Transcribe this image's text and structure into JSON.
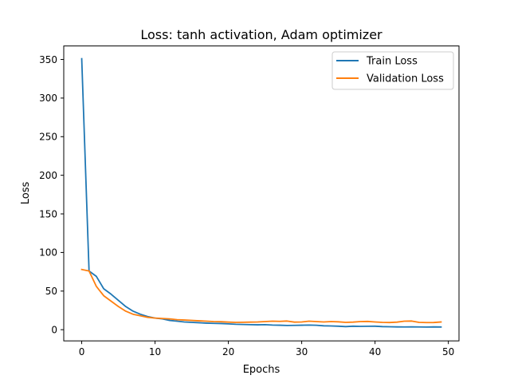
{
  "chart_data": {
    "type": "line",
    "title": "Loss: tanh activation, Adam optimizer",
    "xlabel": "Epochs",
    "ylabel": "Loss",
    "xlim": [
      -2.45,
      51.45
    ],
    "ylim": [
      -14.5,
      367.5
    ],
    "xticks": [
      0,
      10,
      20,
      30,
      40,
      50
    ],
    "yticks": [
      0,
      50,
      100,
      150,
      200,
      250,
      300,
      350
    ],
    "grid": false,
    "legend_position": "top-right",
    "x": [
      0,
      1,
      2,
      3,
      4,
      5,
      6,
      7,
      8,
      9,
      10,
      11,
      12,
      13,
      14,
      15,
      16,
      17,
      18,
      19,
      20,
      21,
      22,
      23,
      24,
      25,
      26,
      27,
      28,
      29,
      30,
      31,
      32,
      33,
      34,
      35,
      36,
      37,
      38,
      39,
      40,
      41,
      42,
      43,
      44,
      45,
      46,
      47,
      48,
      49
    ],
    "series": [
      {
        "name": "Train Loss",
        "color": "#1f77b4",
        "values": [
          351,
          76,
          69,
          53,
          46,
          38,
          30,
          24,
          20,
          17,
          15,
          14,
          12,
          11,
          10,
          9.5,
          9,
          8.5,
          8.2,
          8,
          7.5,
          7,
          6.8,
          6.5,
          6.3,
          6.5,
          6,
          5.8,
          5.5,
          5.6,
          5.8,
          6,
          5.7,
          5,
          4.8,
          4.5,
          4,
          4.5,
          4.3,
          4.4,
          4.5,
          4,
          3.8,
          3.6,
          3.5,
          3.7,
          3.5,
          3.4,
          3.6,
          3.5
        ]
      },
      {
        "name": "Validation Loss",
        "color": "#ff7f0e",
        "values": [
          78,
          76,
          56,
          44,
          37,
          30,
          24,
          20,
          18,
          16,
          15,
          14.5,
          14,
          13,
          12.5,
          12,
          11.5,
          11,
          10.5,
          10.3,
          9.8,
          9.5,
          9.6,
          9.8,
          10,
          10.5,
          11,
          10.8,
          11.2,
          9.8,
          10,
          11,
          10.5,
          10,
          10.5,
          10.2,
          9.5,
          9.8,
          10.5,
          10.7,
          10,
          9.5,
          9.3,
          9.8,
          11,
          11.2,
          9.5,
          9.2,
          9.3,
          10
        ]
      }
    ]
  }
}
